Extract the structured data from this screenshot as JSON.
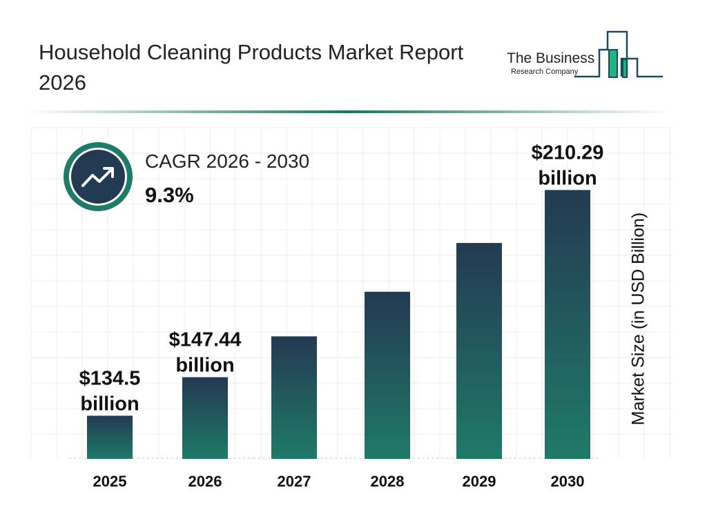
{
  "title": "Household Cleaning Products Market Report 2026",
  "logo": {
    "line1": "The Business",
    "line2": "Research Company"
  },
  "cagr": {
    "label": "CAGR 2026 - 2030",
    "value": "9.3%",
    "icon": "trend-up-arrow-icon"
  },
  "colors": {
    "bar_top": "#243a52",
    "bar_bottom": "#1f7a68",
    "accent": "#1f7a68",
    "logo_green": "#20b483"
  },
  "chart_data": {
    "type": "bar",
    "title": "Household Cleaning Products Market Report 2026",
    "categories": [
      "2025",
      "2026",
      "2027",
      "2028",
      "2029",
      "2030"
    ],
    "values": [
      134.5,
      147.44,
      161.15,
      176.13,
      192.51,
      210.29
    ],
    "data_labels": [
      [
        "$134.5",
        "billion"
      ],
      [
        "$147.44",
        "billion"
      ],
      null,
      null,
      null,
      [
        "$210.29",
        "billion"
      ]
    ],
    "ylabel": "Market Size (in USD Billion)",
    "xlabel": "",
    "grid": true
  }
}
